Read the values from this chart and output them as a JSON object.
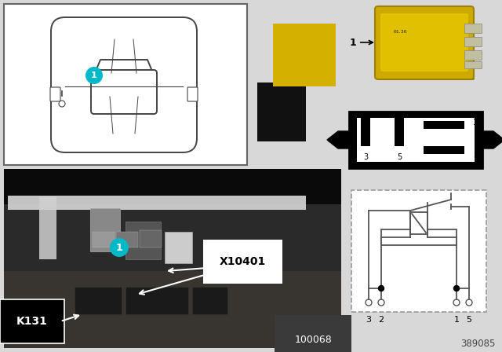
{
  "bg_color": "#d8d8d8",
  "car_box_bg": "#ffffff",
  "car_line_color": "#444444",
  "yellow_color": "#d4b000",
  "black_swatch": "#111111",
  "cyan_color": "#00b8c8",
  "photo_bg": "#1c1c1c",
  "photo_light_bar": "#b0b0b0",
  "label_k131": "K131",
  "label_x10401": "X10401",
  "label_100068": "100068",
  "label_389085": "389085",
  "relay_diag_bg": "#000000",
  "relay_diag_inner": "#ffffff",
  "schematic_border": "#999999",
  "schematic_line": "#555555",
  "schematic_bg": "#ffffff"
}
